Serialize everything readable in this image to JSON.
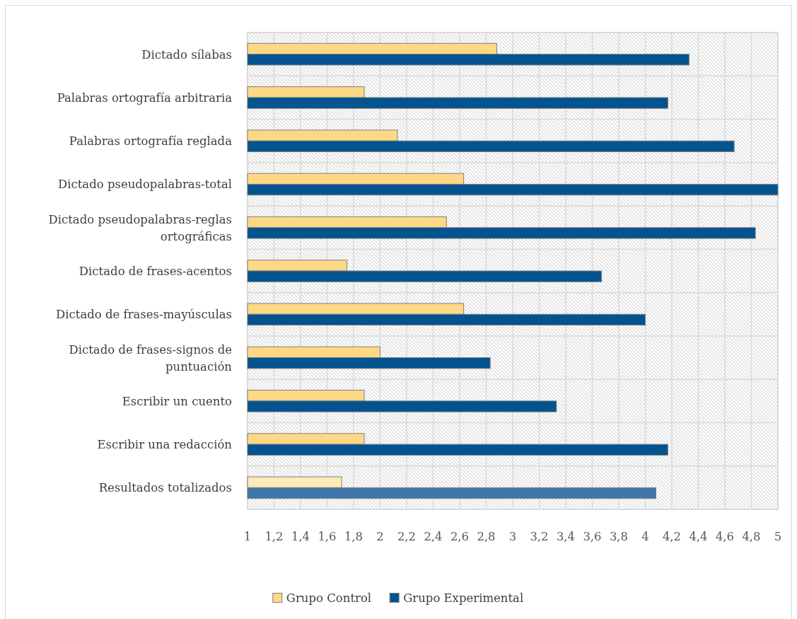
{
  "chart_data": {
    "type": "bar",
    "orientation": "horizontal",
    "categories": [
      "Dictado sílabas",
      "Palabras ortografía arbitraria",
      "Palabras ortografía reglada",
      "Dictado pseudopalabras-total",
      "Dictado pseudopalabras-reglas ortográficas",
      "Dictado de frases-acentos",
      "Dictado de frases-mayúsculas",
      "Dictado de frases-signos de puntuación",
      "Escribir un cuento",
      "Escribir una redacción",
      "Resultados totalizados"
    ],
    "series": [
      {
        "name": "Grupo Control",
        "color": "#ffd886",
        "colors": [
          "#ffd886",
          "#ffd886",
          "#ffd886",
          "#ffd886",
          "#ffd886",
          "#ffd886",
          "#ffd886",
          "#ffd886",
          "#ffd886",
          "#ffd886",
          "#ffe9b8"
        ],
        "values": [
          2.88,
          1.88,
          2.13,
          2.63,
          2.5,
          1.75,
          2.63,
          2.0,
          1.88,
          1.88,
          1.71
        ]
      },
      {
        "name": "Grupo Experimental",
        "color": "#02538f",
        "colors": [
          "#02538f",
          "#02538f",
          "#02538f",
          "#02538f",
          "#02538f",
          "#02538f",
          "#02538f",
          "#02538f",
          "#02538f",
          "#02538f",
          "#3e76aa"
        ],
        "values": [
          4.33,
          4.17,
          4.67,
          5.0,
          4.83,
          3.67,
          4.0,
          2.83,
          3.33,
          4.17,
          4.08
        ]
      }
    ],
    "xlim": [
      1,
      5
    ],
    "xticks": [
      1,
      {
        "value": 1.2,
        "label": "1,2"
      },
      {
        "value": 1.4,
        "label": "1,4"
      },
      {
        "value": 1.6,
        "label": "1,6"
      },
      {
        "value": 1.8,
        "label": "1,8"
      },
      2,
      {
        "value": 2.2,
        "label": "2,2"
      },
      {
        "value": 2.4,
        "label": "2,4"
      },
      {
        "value": 2.6,
        "label": "2,6"
      },
      {
        "value": 2.8,
        "label": "2,8"
      },
      3,
      {
        "value": 3.2,
        "label": "3,2"
      },
      {
        "value": 3.4,
        "label": "3,4"
      },
      {
        "value": 3.6,
        "label": "3,6"
      },
      {
        "value": 3.8,
        "label": "3,8"
      },
      4,
      {
        "value": 4.2,
        "label": "4,2"
      },
      {
        "value": 4.4,
        "label": "4,4"
      },
      {
        "value": 4.6,
        "label": "4,6"
      },
      {
        "value": 4.8,
        "label": "4,8"
      },
      5
    ],
    "grid": true,
    "legend": "bottom"
  }
}
